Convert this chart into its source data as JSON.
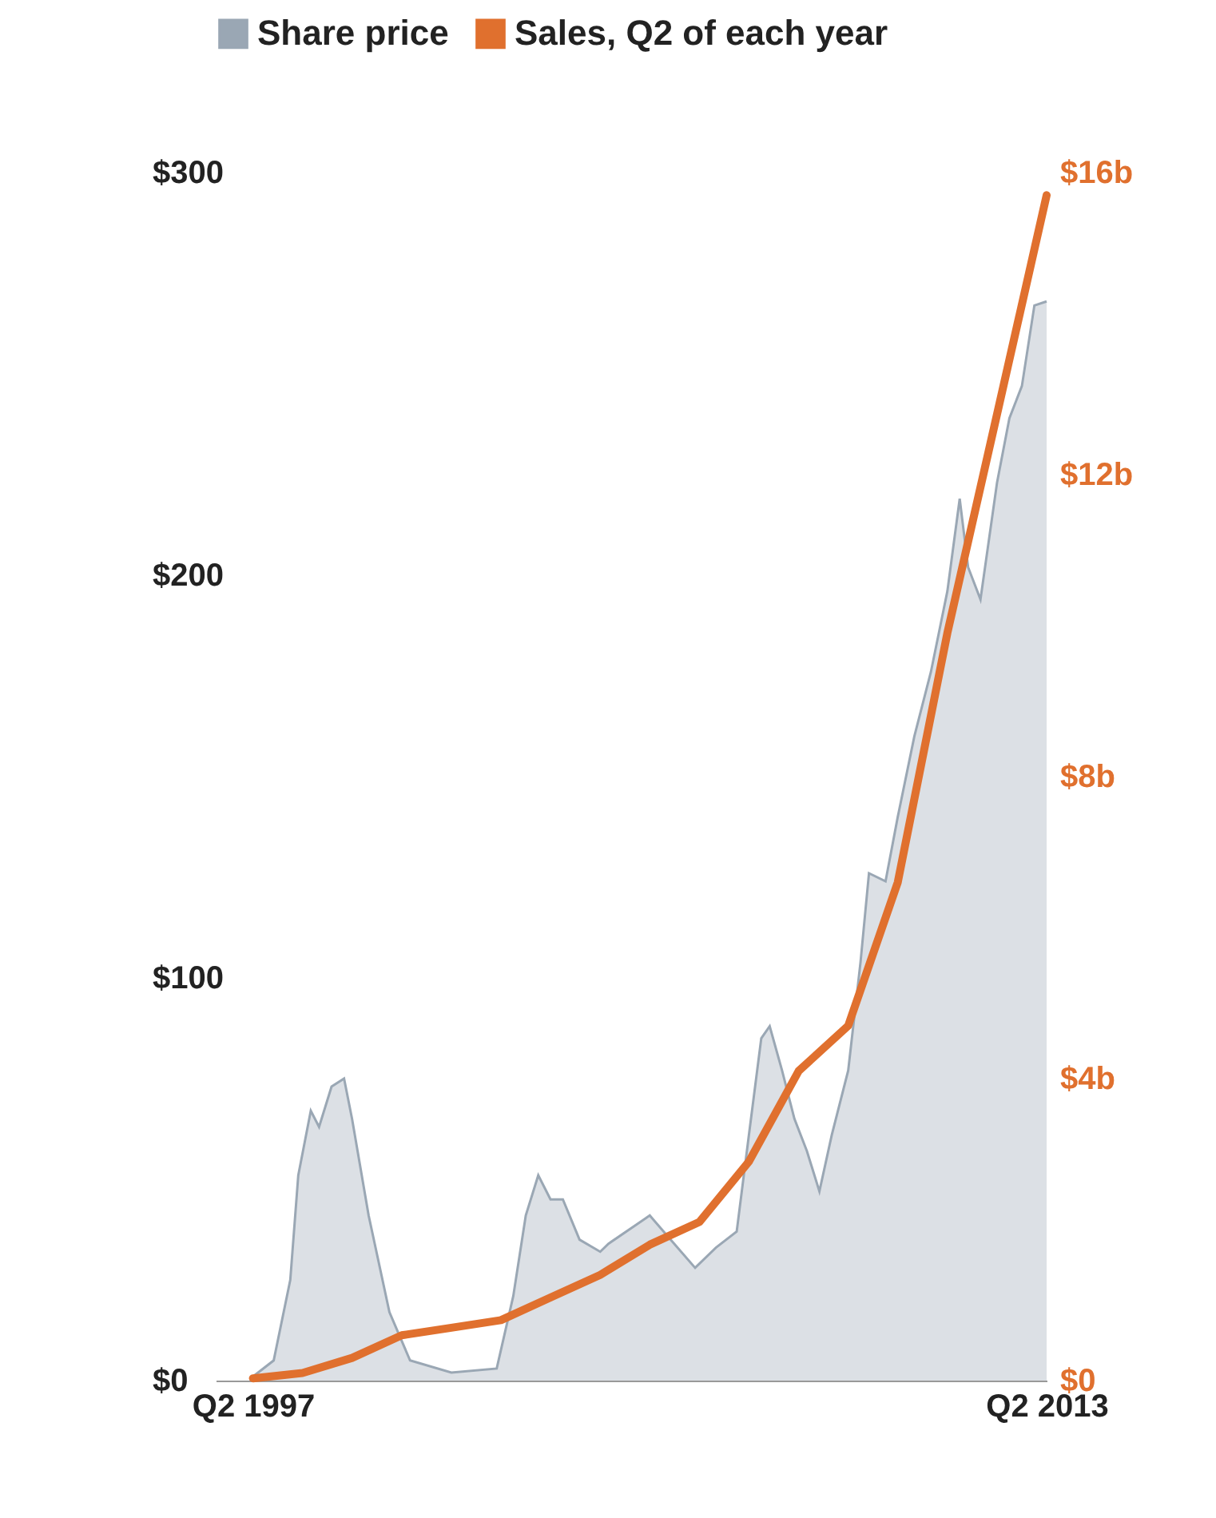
{
  "chart_data": {
    "type": "area",
    "xlim": [
      "1996-07",
      "2013-04"
    ],
    "xticks": [
      {
        "value": "1997-04",
        "label": "Q2 1997"
      },
      {
        "value": "2013-04",
        "label": "Q2 2013"
      }
    ],
    "ylim": [
      0,
      300
    ],
    "yticks": [
      {
        "value": 0,
        "label": "$0"
      },
      {
        "value": 100,
        "label": "$100"
      },
      {
        "value": 200,
        "label": "$200"
      },
      {
        "value": 300,
        "label": "$300"
      }
    ],
    "y2lim": [
      0,
      16
    ],
    "y2ticks": [
      {
        "value": 0,
        "label": "$0"
      },
      {
        "value": 4,
        "label": "$4b"
      },
      {
        "value": 8,
        "label": "$8b"
      },
      {
        "value": 12,
        "label": "$12b"
      },
      {
        "value": 16,
        "label": "$16b"
      }
    ],
    "grid": false,
    "legend": "top",
    "series": [
      {
        "name": "Share price",
        "color": "#9aa7b4",
        "x": [
          "1997-04",
          "1997-09",
          "1998-01",
          "1998-03",
          "1998-06",
          "1998-08",
          "1998-11",
          "1999-02",
          "1999-04",
          "1999-08",
          "2000-01",
          "2000-06",
          "2001-04",
          "2002-03",
          "2002-07",
          "2002-10",
          "2003-01",
          "2003-04",
          "2003-07",
          "2003-11",
          "2004-04",
          "2004-06",
          "2005-04",
          "2005-09",
          "2006-03",
          "2006-08",
          "2007-01",
          "2007-04",
          "2007-07",
          "2007-09",
          "2007-12",
          "2008-03",
          "2008-06",
          "2008-09",
          "2008-12",
          "2009-04",
          "2009-07",
          "2009-09",
          "2010-01",
          "2010-04",
          "2010-08",
          "2010-12",
          "2011-04",
          "2011-07",
          "2011-09",
          "2011-12",
          "2012-04",
          "2012-07",
          "2012-10",
          "2013-01",
          "2013-04"
        ],
        "values": [
          1,
          5,
          25,
          51,
          67,
          63,
          73,
          75,
          65,
          41,
          17,
          5,
          2,
          3,
          21,
          41,
          51,
          45,
          45,
          35,
          32,
          34,
          41,
          35,
          28,
          33,
          37,
          61,
          85,
          88,
          77,
          65,
          57,
          47,
          61,
          77,
          104,
          126,
          124,
          140,
          160,
          176,
          196,
          219,
          202,
          194,
          223,
          239,
          247,
          267,
          268
        ]
      },
      {
        "name": "Sales, Q2 of each year",
        "type": "line",
        "axis": "y2",
        "color": "#e0702e",
        "x": [
          "1997-04",
          "1998-04",
          "1999-04",
          "2000-04",
          "2001-04",
          "2002-04",
          "2003-04",
          "2004-04",
          "2005-04",
          "2006-04",
          "2007-04",
          "2008-04",
          "2009-04",
          "2010-04",
          "2011-04",
          "2012-04",
          "2013-04"
        ],
        "values": [
          0.03,
          0.1,
          0.3,
          0.6,
          0.7,
          0.8,
          1.1,
          1.4,
          1.8,
          2.1,
          2.9,
          4.1,
          4.7,
          6.6,
          9.9,
          12.8,
          15.7
        ]
      }
    ]
  }
}
